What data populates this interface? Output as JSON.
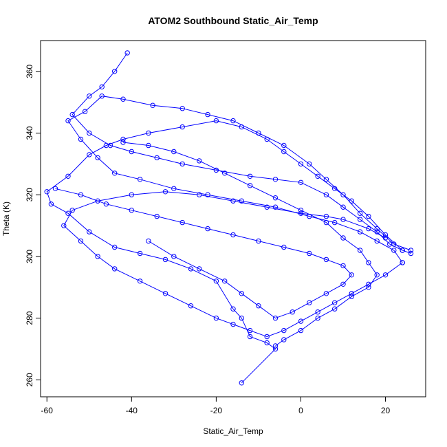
{
  "chart_data": {
    "type": "line",
    "title": "ATOM2 Southbound Static_Air_Temp",
    "xlabel": "Static_Air_Temp",
    "ylabel": "Theta (K)",
    "xlim": [
      -61.5,
      29.5
    ],
    "ylim": [
      254.5,
      370
    ],
    "xticks": [
      -60,
      -40,
      -20,
      0,
      20
    ],
    "yticks": [
      260,
      280,
      300,
      320,
      340,
      360
    ],
    "grid": false,
    "legend": "none",
    "markers": "open-circle",
    "color": "#0000ff",
    "series": [
      {
        "values": [
          [
            -14,
            259
          ],
          [
            -6,
            270
          ],
          [
            -8,
            272
          ],
          [
            -12,
            274
          ],
          [
            -14,
            280
          ],
          [
            -16,
            283
          ],
          [
            -20,
            292
          ],
          [
            -26,
            296
          ],
          [
            -32,
            299
          ],
          [
            -38,
            301
          ],
          [
            -44,
            303
          ],
          [
            -50,
            308
          ],
          [
            -55,
            314
          ],
          [
            -59,
            317
          ],
          [
            -60,
            321
          ],
          [
            -55,
            326
          ],
          [
            -50,
            333
          ],
          [
            -46,
            336
          ],
          [
            -42,
            338
          ],
          [
            -36,
            340
          ],
          [
            -28,
            342
          ],
          [
            -20,
            344
          ],
          [
            -14,
            342
          ],
          [
            -8,
            338
          ],
          [
            -4,
            334
          ],
          [
            0,
            330
          ],
          [
            4,
            326
          ],
          [
            8,
            322
          ],
          [
            12,
            318
          ],
          [
            16,
            313
          ],
          [
            20,
            307
          ],
          [
            24,
            302
          ],
          [
            26,
            301
          ]
        ]
      },
      {
        "values": [
          [
            26,
            302
          ],
          [
            22,
            304
          ],
          [
            18,
            309
          ],
          [
            14,
            314
          ],
          [
            10,
            320
          ],
          [
            6,
            325
          ],
          [
            2,
            330
          ],
          [
            -4,
            336
          ],
          [
            -10,
            340
          ],
          [
            -16,
            344
          ],
          [
            -22,
            346
          ],
          [
            -28,
            348
          ],
          [
            -35,
            349
          ],
          [
            -42,
            351
          ],
          [
            -47,
            352
          ],
          [
            -51,
            347
          ],
          [
            -55,
            344
          ],
          [
            -52,
            338
          ],
          [
            -48,
            332
          ],
          [
            -44,
            327
          ],
          [
            -38,
            325
          ],
          [
            -30,
            322
          ],
          [
            -22,
            320
          ],
          [
            -14,
            318
          ],
          [
            -6,
            316
          ],
          [
            2,
            313
          ],
          [
            8,
            311
          ],
          [
            14,
            308
          ],
          [
            18,
            305
          ],
          [
            22,
            302
          ],
          [
            24,
            298
          ]
        ]
      },
      {
        "values": [
          [
            24,
            298
          ],
          [
            20,
            294
          ],
          [
            16,
            291
          ],
          [
            12,
            288
          ],
          [
            8,
            285
          ],
          [
            4,
            282
          ],
          [
            0,
            279
          ],
          [
            -4,
            276
          ],
          [
            -8,
            274
          ],
          [
            -12,
            276
          ],
          [
            -16,
            278
          ],
          [
            -20,
            280
          ],
          [
            -26,
            284
          ],
          [
            -32,
            288
          ],
          [
            -38,
            292
          ],
          [
            -44,
            296
          ],
          [
            -48,
            300
          ],
          [
            -52,
            305
          ],
          [
            -56,
            310
          ],
          [
            -54,
            315
          ],
          [
            -48,
            318
          ],
          [
            -40,
            320
          ],
          [
            -32,
            321
          ],
          [
            -24,
            320
          ],
          [
            -16,
            318
          ],
          [
            -8,
            316
          ],
          [
            0,
            314
          ],
          [
            6,
            313
          ],
          [
            10,
            312
          ],
          [
            16,
            309
          ],
          [
            20,
            306
          ]
        ]
      },
      {
        "values": [
          [
            -41,
            366
          ],
          [
            -44,
            360
          ],
          [
            -47,
            355
          ],
          [
            -50,
            352
          ],
          [
            -54,
            346
          ],
          [
            -50,
            340
          ],
          [
            -45,
            336
          ],
          [
            -40,
            334
          ],
          [
            -34,
            332
          ],
          [
            -28,
            330
          ],
          [
            -20,
            328
          ],
          [
            -12,
            326
          ],
          [
            -6,
            325
          ],
          [
            0,
            324
          ],
          [
            6,
            320
          ],
          [
            10,
            316
          ],
          [
            14,
            312
          ],
          [
            18,
            308
          ],
          [
            21,
            304
          ],
          [
            24,
            302
          ]
        ]
      },
      {
        "values": [
          [
            -42,
            337
          ],
          [
            -36,
            336
          ],
          [
            -30,
            334
          ],
          [
            -24,
            331
          ],
          [
            -18,
            327
          ],
          [
            -12,
            323
          ],
          [
            -6,
            319
          ],
          [
            0,
            315
          ],
          [
            6,
            311
          ],
          [
            10,
            306
          ],
          [
            14,
            302
          ],
          [
            16,
            298
          ],
          [
            18,
            294
          ],
          [
            16,
            290
          ],
          [
            12,
            287
          ],
          [
            8,
            283
          ],
          [
            4,
            280
          ],
          [
            0,
            276
          ],
          [
            -4,
            273
          ],
          [
            -6,
            271
          ]
        ]
      },
      {
        "values": [
          [
            -58,
            322
          ],
          [
            -52,
            320
          ],
          [
            -46,
            317
          ],
          [
            -40,
            315
          ],
          [
            -34,
            313
          ],
          [
            -28,
            311
          ],
          [
            -22,
            309
          ],
          [
            -16,
            307
          ],
          [
            -10,
            305
          ],
          [
            -4,
            303
          ],
          [
            2,
            301
          ],
          [
            6,
            299
          ],
          [
            10,
            297
          ],
          [
            12,
            294
          ],
          [
            10,
            291
          ],
          [
            6,
            288
          ],
          [
            2,
            285
          ],
          [
            -2,
            282
          ],
          [
            -6,
            280
          ],
          [
            -10,
            284
          ],
          [
            -14,
            288
          ],
          [
            -18,
            292
          ],
          [
            -24,
            296
          ],
          [
            -30,
            300
          ],
          [
            -36,
            305
          ]
        ]
      }
    ]
  }
}
